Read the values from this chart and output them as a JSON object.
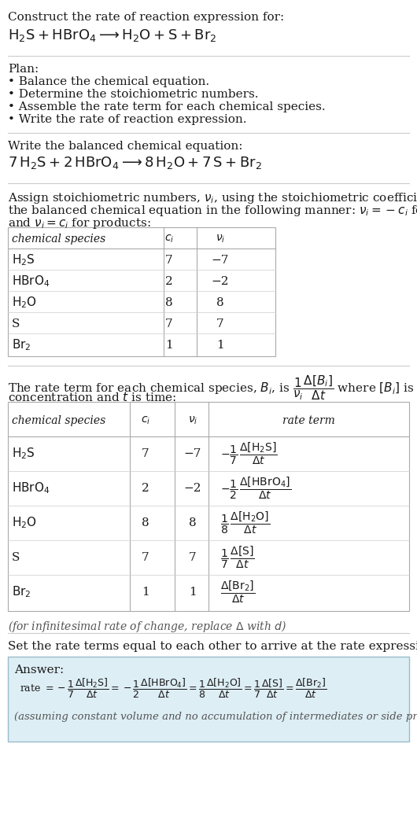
{
  "bg_color": "#ffffff",
  "text_color": "#1a1a1a",
  "gray_text": "#555555",
  "table_border": "#aaaaaa",
  "table_row_sep": "#cccccc",
  "answer_box_color": "#ddeef5",
  "answer_box_border": "#99bbcc",
  "sections": {
    "title1": "Construct the rate of reaction expression for:",
    "plan_header": "Plan:",
    "plan_items": [
      "• Balance the chemical equation.",
      "• Determine the stoichiometric numbers.",
      "• Assemble the rate term for each chemical species.",
      "• Write the rate of reaction expression."
    ],
    "balanced_header": "Write the balanced chemical equation:",
    "stoich_line1": "Assign stoichiometric numbers, $\\nu_i$, using the stoichiometric coefficients, $c_i$, from",
    "stoich_line2": "the balanced chemical equation in the following manner: $\\nu_i = -c_i$ for reactants",
    "stoich_line3": "and $\\nu_i = c_i$ for products:",
    "rate_line1": "The rate term for each chemical species, $B_i$, is $\\dfrac{1}{\\nu_i}\\dfrac{\\Delta[B_i]}{\\Delta t}$ where $[B_i]$ is the amount",
    "rate_line2": "concentration and $t$ is time:",
    "infinitesimal": "(for infinitesimal rate of change, replace Δ with $d$)",
    "answer_header": "Set the rate terms equal to each other to arrive at the rate expression:",
    "answer_label": "Answer:",
    "answer_note": "(assuming constant volume and no accumulation of intermediates or side products)"
  }
}
